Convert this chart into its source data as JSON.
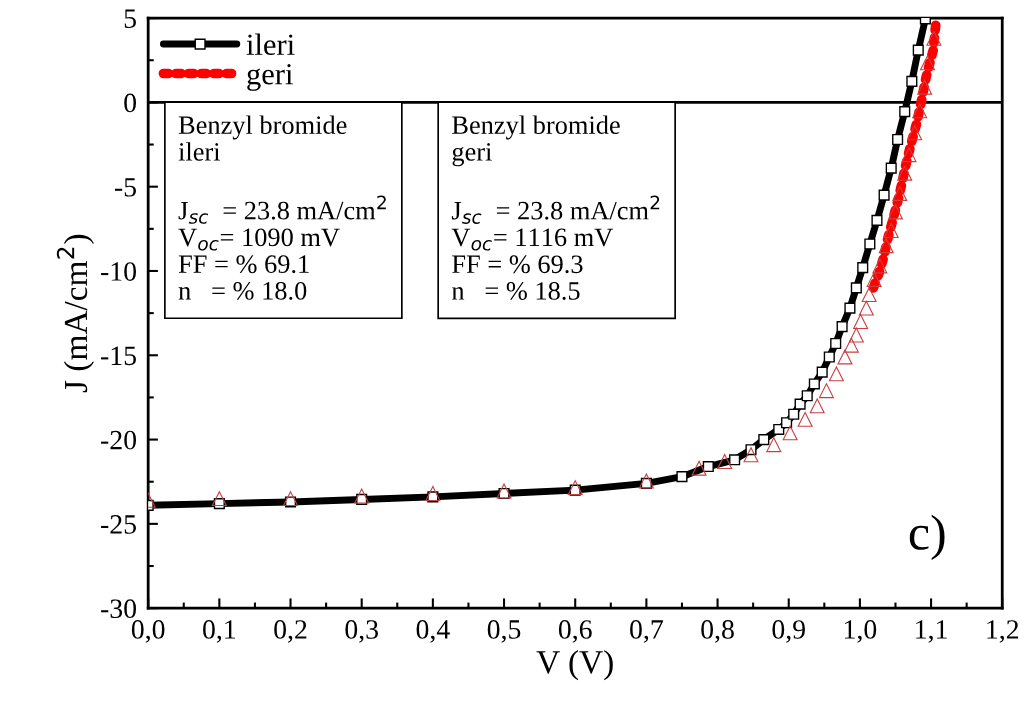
{
  "chart_data": {
    "type": "line",
    "xlabel": "V (V)",
    "ylabel": "J (mA/cm$^{2}$)",
    "xlim": [
      0,
      1.2
    ],
    "ylim": [
      -30,
      5
    ],
    "xticks": [
      {
        "value": 0,
        "label": "0,0"
      },
      {
        "value": 0.1,
        "label": "0,1"
      },
      {
        "value": 0.2,
        "label": "0,2"
      },
      {
        "value": 0.3,
        "label": "0,3"
      },
      {
        "value": 0.4,
        "label": "0,4"
      },
      {
        "value": 0.5,
        "label": "0,5"
      },
      {
        "value": 0.6,
        "label": "0,6"
      },
      {
        "value": 0.7,
        "label": "0,7"
      },
      {
        "value": 0.8,
        "label": "0,8"
      },
      {
        "value": 0.9,
        "label": "0,9"
      },
      {
        "value": 1.0,
        "label": "1,0"
      },
      {
        "value": 1.1,
        "label": "1,1"
      },
      {
        "value": 1.2,
        "label": "1,2"
      }
    ],
    "yticks": [
      -30,
      -25,
      -20,
      -15,
      -10,
      -5,
      0,
      5
    ],
    "grid": false,
    "legend": "top left",
    "ref_lines": [
      {
        "axis": "y",
        "value": 0,
        "color": "#000000"
      }
    ],
    "series": [
      {
        "name": "ileri",
        "color": "#000000",
        "marker": "square",
        "line_style": "solid",
        "x": [
          0,
          0.1,
          0.2,
          0.3,
          0.4,
          0.5,
          0.6,
          0.7,
          0.75,
          0.787,
          0.824,
          0.847,
          0.865,
          0.886,
          0.897,
          0.907,
          0.916,
          0.926,
          0.936,
          0.947,
          0.957,
          0.966,
          0.975,
          0.986,
          0.995,
          1.004,
          1.014,
          1.024,
          1.034,
          1.044,
          1.053,
          1.063,
          1.073,
          1.082,
          1.092
        ],
        "values": [
          -23.9,
          -23.8,
          -23.7,
          -23.55,
          -23.4,
          -23.2,
          -23.0,
          -22.6,
          -22.2,
          -21.6,
          -21.2,
          -20.6,
          -20.0,
          -19.4,
          -19.0,
          -18.5,
          -17.9,
          -17.4,
          -16.7,
          -16.0,
          -15.1,
          -14.3,
          -13.3,
          -12.2,
          -11.0,
          -9.8,
          -8.4,
          -7.0,
          -5.5,
          -3.9,
          -2.2,
          -0.55,
          1.25,
          3.1,
          4.95
        ]
      },
      {
        "name": "geri",
        "color": "#ff0000",
        "marker": "none",
        "line_style": "dotted",
        "x": [
          1.019,
          1.027,
          1.034,
          1.039,
          1.046,
          1.053,
          1.059,
          1.064,
          1.071,
          1.08,
          1.087,
          1.093,
          1.103,
          1.107
        ],
        "values": [
          -11.0,
          -10.1,
          -9.1,
          -8.1,
          -7.0,
          -5.9,
          -4.8,
          -3.8,
          -2.6,
          -1.2,
          0.2,
          1.5,
          3.1,
          4.8
        ]
      },
      {
        "type": "scatter",
        "color": "#c84040",
        "marker": "triangle",
        "x": [
          0,
          0.1,
          0.2,
          0.3,
          0.4,
          0.5,
          0.6,
          0.7,
          0.774,
          0.81,
          0.847,
          0.879,
          0.902,
          0.923,
          0.94,
          0.953,
          0.967,
          0.979,
          0.988,
          0.995,
          1.001,
          1.009,
          1.013,
          1.02,
          1.028,
          1.037,
          1.044,
          1.05,
          1.056,
          1.063,
          1.069,
          1.077,
          1.084,
          1.091,
          1.095,
          1.104
        ],
        "values": [
          -23.6,
          -23.5,
          -23.5,
          -23.35,
          -23.2,
          -23.05,
          -22.85,
          -22.45,
          -21.7,
          -21.3,
          -20.9,
          -20.3,
          -19.6,
          -18.8,
          -18.0,
          -17.1,
          -16.1,
          -15.1,
          -14.4,
          -13.8,
          -13.0,
          -12.2,
          -11.4,
          -10.5,
          -9.7,
          -8.5,
          -7.6,
          -6.5,
          -5.4,
          -4.2,
          -3.1,
          -1.8,
          -0.5,
          0.9,
          2.35,
          3.8
        ]
      }
    ],
    "annotations": [
      "Benzyl bromide\nileri\n\nJ$_{sc}$  = 23.8 mA/cm$^{2}$\nV$_{oc}$= 1090 mV\nFF = % 69.1\nn   = % 18.0",
      "Benzyl bromide\ngeri\n\nJ$_{sc}$  = 23.8 mA/cm$^{2}$\nV$_{oc}$= 1116 mV\nFF = % 69.3\nn   = % 18.5",
      "c)"
    ]
  }
}
